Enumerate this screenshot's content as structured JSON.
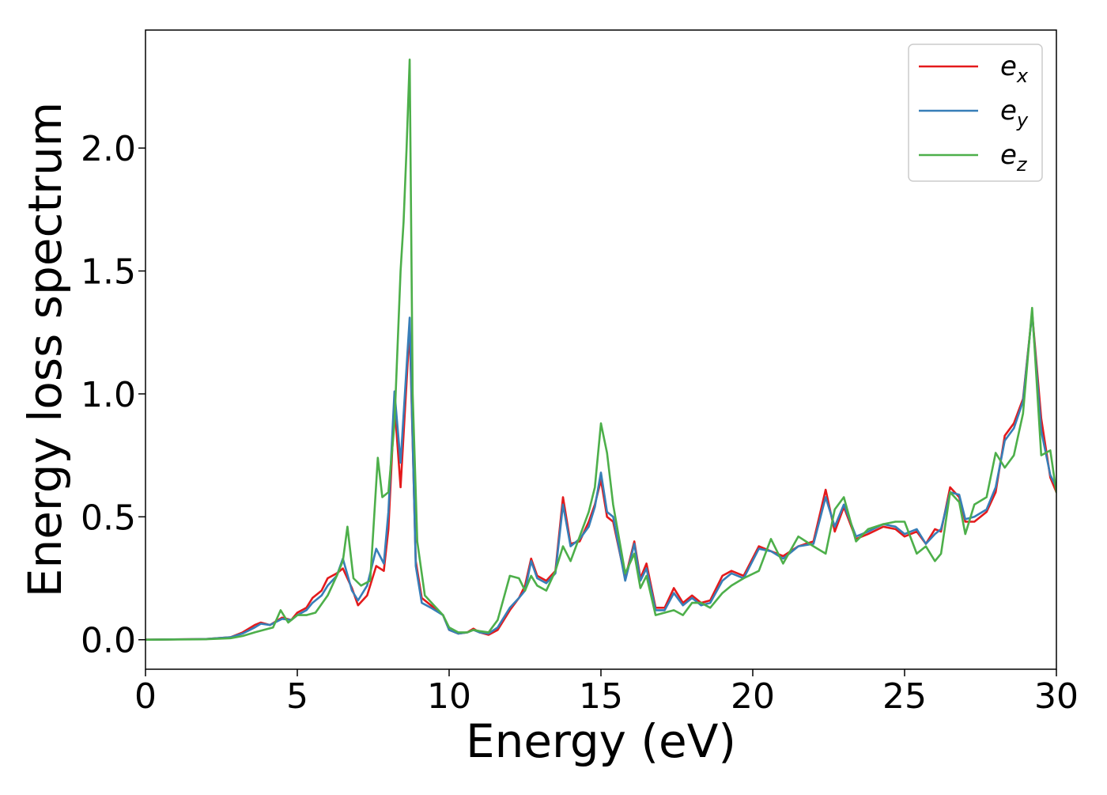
{
  "chart_data": {
    "type": "line",
    "title": "",
    "xlabel": "Energy (eV)",
    "ylabel": "Energy loss spectrum",
    "xlim": [
      0,
      30
    ],
    "ylim": [
      -0.12,
      2.48
    ],
    "xticks": [
      0,
      5,
      10,
      15,
      20,
      25,
      30
    ],
    "xtick_labels": [
      "0",
      "5",
      "10",
      "15",
      "20",
      "25",
      "30"
    ],
    "yticks": [
      0.0,
      0.5,
      1.0,
      1.5,
      2.0
    ],
    "ytick_labels": [
      "0.0",
      "0.5",
      "1.0",
      "1.5",
      "2.0"
    ],
    "grid": false,
    "legend_position": "top-right",
    "series": [
      {
        "name": "e_x",
        "legend_base": "e",
        "legend_sub": "x",
        "color": "#e41a1c",
        "x": [
          0,
          2,
          2.8,
          3.2,
          3.6,
          3.8,
          4.1,
          4.5,
          4.8,
          5.0,
          5.3,
          5.5,
          5.8,
          6.0,
          6.3,
          6.5,
          6.8,
          7.0,
          7.3,
          7.6,
          7.85,
          8.0,
          8.2,
          8.4,
          8.7,
          8.9,
          9.1,
          9.4,
          9.8,
          10.0,
          10.3,
          10.6,
          10.8,
          11.0,
          11.3,
          11.6,
          12.0,
          12.3,
          12.5,
          12.7,
          12.9,
          13.2,
          13.5,
          13.75,
          14.0,
          14.3,
          14.6,
          14.8,
          15.0,
          15.2,
          15.4,
          15.8,
          16.1,
          16.3,
          16.5,
          16.8,
          17.1,
          17.4,
          17.7,
          18.0,
          18.3,
          18.6,
          19.0,
          19.3,
          19.7,
          20.2,
          20.6,
          21.0,
          21.5,
          22.0,
          22.4,
          22.7,
          23.0,
          23.4,
          23.8,
          24.3,
          24.7,
          25.0,
          25.4,
          25.7,
          26.0,
          26.2,
          26.5,
          26.8,
          27.0,
          27.3,
          27.7,
          28.0,
          28.3,
          28.6,
          28.9,
          29.2,
          29.5,
          29.8,
          30.0
        ],
        "y": [
          0,
          0.003,
          0.01,
          0.03,
          0.06,
          0.07,
          0.06,
          0.09,
          0.08,
          0.11,
          0.13,
          0.17,
          0.2,
          0.25,
          0.27,
          0.29,
          0.21,
          0.14,
          0.18,
          0.3,
          0.28,
          0.45,
          0.96,
          0.62,
          1.27,
          0.32,
          0.17,
          0.14,
          0.1,
          0.04,
          0.025,
          0.03,
          0.045,
          0.03,
          0.02,
          0.04,
          0.12,
          0.17,
          0.22,
          0.33,
          0.26,
          0.24,
          0.28,
          0.58,
          0.39,
          0.4,
          0.48,
          0.55,
          0.65,
          0.5,
          0.48,
          0.25,
          0.4,
          0.25,
          0.31,
          0.13,
          0.13,
          0.21,
          0.15,
          0.18,
          0.15,
          0.16,
          0.26,
          0.28,
          0.26,
          0.38,
          0.36,
          0.34,
          0.38,
          0.4,
          0.61,
          0.44,
          0.54,
          0.41,
          0.43,
          0.46,
          0.45,
          0.42,
          0.44,
          0.39,
          0.45,
          0.44,
          0.62,
          0.58,
          0.48,
          0.48,
          0.52,
          0.6,
          0.83,
          0.88,
          0.98,
          1.33,
          0.9,
          0.66,
          0.6
        ]
      },
      {
        "name": "e_y",
        "legend_base": "e",
        "legend_sub": "y",
        "color": "#377eb8",
        "x": [
          0,
          2,
          2.8,
          3.2,
          3.6,
          3.8,
          4.1,
          4.5,
          4.8,
          5.0,
          5.3,
          5.5,
          5.8,
          6.0,
          6.3,
          6.5,
          6.8,
          7.0,
          7.3,
          7.6,
          7.85,
          8.0,
          8.2,
          8.4,
          8.7,
          8.9,
          9.1,
          9.4,
          9.8,
          10.0,
          10.3,
          10.6,
          10.8,
          11.0,
          11.3,
          11.6,
          12.0,
          12.3,
          12.5,
          12.7,
          12.9,
          13.2,
          13.5,
          13.75,
          14.0,
          14.3,
          14.6,
          14.8,
          15.0,
          15.2,
          15.4,
          15.8,
          16.1,
          16.3,
          16.5,
          16.8,
          17.1,
          17.4,
          17.7,
          18.0,
          18.3,
          18.6,
          19.0,
          19.3,
          19.7,
          20.2,
          20.6,
          21.0,
          21.5,
          22.0,
          22.4,
          22.7,
          23.0,
          23.4,
          23.8,
          24.3,
          24.7,
          25.0,
          25.4,
          25.7,
          26.0,
          26.2,
          26.5,
          26.8,
          27.0,
          27.3,
          27.7,
          28.0,
          28.3,
          28.6,
          28.9,
          29.2,
          29.5,
          29.8,
          30.0
        ],
        "y": [
          0,
          0.003,
          0.01,
          0.025,
          0.05,
          0.065,
          0.06,
          0.085,
          0.08,
          0.1,
          0.12,
          0.15,
          0.18,
          0.22,
          0.26,
          0.33,
          0.2,
          0.16,
          0.22,
          0.37,
          0.31,
          0.52,
          1.01,
          0.72,
          1.31,
          0.3,
          0.15,
          0.13,
          0.1,
          0.04,
          0.025,
          0.03,
          0.04,
          0.03,
          0.025,
          0.05,
          0.13,
          0.17,
          0.2,
          0.32,
          0.25,
          0.23,
          0.27,
          0.55,
          0.38,
          0.41,
          0.46,
          0.54,
          0.68,
          0.52,
          0.5,
          0.24,
          0.39,
          0.24,
          0.29,
          0.12,
          0.12,
          0.19,
          0.14,
          0.17,
          0.14,
          0.15,
          0.24,
          0.27,
          0.25,
          0.37,
          0.36,
          0.33,
          0.38,
          0.39,
          0.58,
          0.46,
          0.55,
          0.42,
          0.44,
          0.47,
          0.46,
          0.43,
          0.45,
          0.39,
          0.43,
          0.45,
          0.6,
          0.59,
          0.49,
          0.5,
          0.53,
          0.62,
          0.81,
          0.86,
          0.97,
          1.33,
          0.85,
          0.67,
          0.62
        ]
      },
      {
        "name": "e_z",
        "legend_base": "e",
        "legend_sub": "z",
        "color": "#4daf4a",
        "x": [
          0,
          2,
          2.8,
          3.2,
          3.6,
          3.9,
          4.2,
          4.45,
          4.7,
          5.0,
          5.3,
          5.6,
          6.0,
          6.3,
          6.5,
          6.65,
          6.85,
          7.1,
          7.4,
          7.65,
          7.8,
          8.0,
          8.2,
          8.4,
          8.5,
          8.6,
          8.7,
          8.8,
          8.95,
          9.2,
          9.5,
          9.8,
          10.0,
          10.3,
          10.6,
          10.8,
          11.0,
          11.3,
          11.6,
          12.0,
          12.3,
          12.5,
          12.7,
          12.9,
          13.2,
          13.5,
          13.75,
          14.0,
          14.3,
          14.6,
          14.8,
          15.0,
          15.2,
          15.4,
          15.8,
          16.1,
          16.3,
          16.5,
          16.8,
          17.1,
          17.4,
          17.7,
          18.0,
          18.3,
          18.6,
          19.0,
          19.3,
          19.7,
          20.2,
          20.6,
          21.0,
          21.5,
          22.0,
          22.4,
          22.7,
          23.0,
          23.4,
          23.8,
          24.3,
          24.7,
          25.0,
          25.4,
          25.7,
          26.0,
          26.2,
          26.5,
          26.8,
          27.0,
          27.3,
          27.7,
          28.0,
          28.3,
          28.6,
          28.9,
          29.2,
          29.5,
          29.8,
          30.0
        ],
        "y": [
          0,
          0.002,
          0.006,
          0.015,
          0.03,
          0.04,
          0.05,
          0.12,
          0.07,
          0.1,
          0.1,
          0.11,
          0.18,
          0.26,
          0.32,
          0.46,
          0.25,
          0.22,
          0.24,
          0.74,
          0.58,
          0.6,
          0.88,
          1.5,
          1.7,
          2.0,
          2.36,
          1.0,
          0.4,
          0.18,
          0.14,
          0.1,
          0.05,
          0.03,
          0.03,
          0.04,
          0.035,
          0.03,
          0.08,
          0.26,
          0.25,
          0.2,
          0.26,
          0.22,
          0.2,
          0.28,
          0.38,
          0.32,
          0.42,
          0.52,
          0.62,
          0.88,
          0.76,
          0.55,
          0.27,
          0.35,
          0.21,
          0.26,
          0.1,
          0.11,
          0.12,
          0.1,
          0.15,
          0.15,
          0.13,
          0.19,
          0.22,
          0.25,
          0.28,
          0.41,
          0.31,
          0.42,
          0.38,
          0.35,
          0.53,
          0.58,
          0.4,
          0.45,
          0.47,
          0.48,
          0.48,
          0.35,
          0.38,
          0.32,
          0.35,
          0.6,
          0.56,
          0.43,
          0.55,
          0.58,
          0.76,
          0.7,
          0.75,
          0.92,
          1.35,
          0.75,
          0.77,
          0.6
        ]
      }
    ]
  }
}
